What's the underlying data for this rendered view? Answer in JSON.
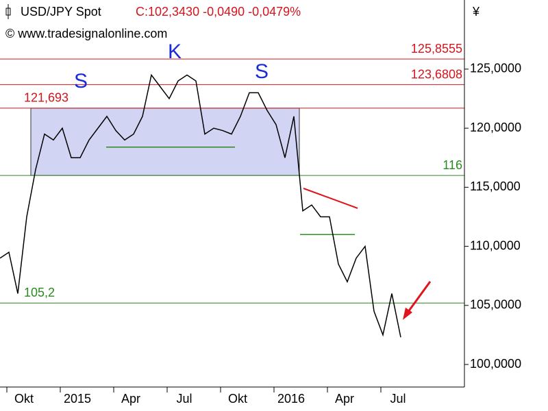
{
  "chart_data": {
    "type": "line",
    "title": "USD/JPY Spot",
    "quote": "C:102,3430 -0,0490 -0,0479%",
    "source": "© www.tradesignalonline.com",
    "y_axis_label": "¥",
    "categories": [
      null,
      "Okt",
      null,
      null,
      null,
      null,
      null,
      "2015",
      null,
      null,
      null,
      null,
      null,
      "Apr",
      null,
      null,
      null,
      null,
      null,
      "Jul",
      null,
      null,
      null,
      null,
      null,
      "Okt",
      null,
      null,
      null,
      null,
      null,
      "2016",
      null,
      null,
      null,
      null,
      null,
      "Apr",
      null,
      null,
      null,
      null,
      null,
      "Jul",
      null,
      null
    ],
    "values": [
      109,
      109.5,
      106,
      112.5,
      116.5,
      119.5,
      119,
      120,
      117.5,
      117.5,
      119,
      120,
      121,
      119.8,
      119,
      119.5,
      121,
      124.5,
      123.5,
      122.5,
      124,
      124.5,
      124,
      119.5,
      120,
      119.8,
      119.5,
      121,
      123,
      123,
      121.5,
      120.3,
      117.5,
      121,
      113,
      113.5,
      112.5,
      112.5,
      108.5,
      107,
      109,
      110,
      104.5,
      102.5,
      106,
      102.3
    ],
    "color": "#000000",
    "ylim": [
      98.09,
      130.85
    ],
    "yticks": [
      {
        "value": 100,
        "label": "100,0000"
      },
      {
        "value": 105,
        "label": "105,0000"
      },
      {
        "value": 110,
        "label": "110,0000"
      },
      {
        "value": 115,
        "label": "115,0000"
      },
      {
        "value": 120,
        "label": "120,0000"
      },
      {
        "value": 125,
        "label": "125,0000"
      }
    ],
    "levels": [
      {
        "value": 125.8555,
        "label": "125,8555",
        "color": "#d4141c"
      },
      {
        "value": 123.6808,
        "label": "123,6808",
        "color": "#d4141c"
      },
      {
        "value": 121.693,
        "label": "121,693",
        "color": "#d4141c"
      },
      {
        "value": 116,
        "label": "116",
        "color": "#2a8a1e"
      },
      {
        "value": 105.2,
        "label": "105,2",
        "color": "#2a8a1e"
      }
    ],
    "support_lines": [
      118.4,
      111
    ],
    "annotations": [
      "S",
      "K",
      "S"
    ]
  }
}
